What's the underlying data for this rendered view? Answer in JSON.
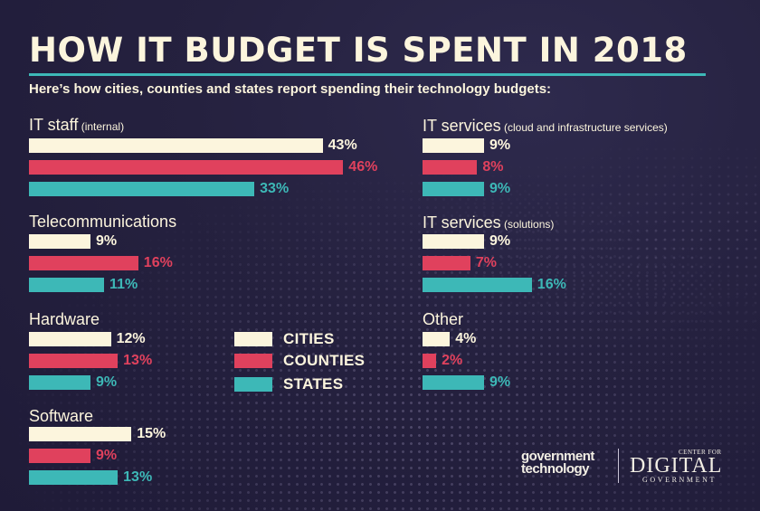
{
  "title": "HOW IT BUDGET IS SPENT IN 2018",
  "subtitle": "Here’s how cities, counties and states report spending their technology budgets:",
  "colors": {
    "cities": "#fcf5dd",
    "counties": "#e0415d",
    "states": "#3db8b7",
    "background": "#25213f",
    "text": "#fcf5dd"
  },
  "legend": [
    {
      "label": "CITIES",
      "color": "#fcf5dd"
    },
    {
      "label": "COUNTIES",
      "color": "#e0415d"
    },
    {
      "label": "STATES",
      "color": "#3db8b7"
    }
  ],
  "logos": {
    "gt_line1": "government",
    "gt_line2": "technology",
    "cdg_small": "CENTER FOR",
    "cdg_big": "DIGITAL",
    "cdg_gov": "GOVERNMENT"
  },
  "chart_data": {
    "type": "bar",
    "orientation": "horizontal",
    "title": "HOW IT BUDGET IS SPENT IN 2018",
    "unit": "%",
    "series": [
      {
        "name": "CITIES",
        "key": "cities"
      },
      {
        "name": "COUNTIES",
        "key": "counties"
      },
      {
        "name": "STATES",
        "key": "states"
      }
    ],
    "categories": [
      {
        "main": "IT staff",
        "sub": "(internal)",
        "values": {
          "cities": 43,
          "counties": 46,
          "states": 33
        }
      },
      {
        "main": "Telecommunications",
        "sub": "",
        "values": {
          "cities": 9,
          "counties": 16,
          "states": 11
        }
      },
      {
        "main": "Hardware",
        "sub": "",
        "values": {
          "cities": 12,
          "counties": 13,
          "states": 9
        }
      },
      {
        "main": "Software",
        "sub": "",
        "values": {
          "cities": 15,
          "counties": 9,
          "states": 13
        }
      },
      {
        "main": "IT services",
        "sub": "(cloud and infrastructure services)",
        "values": {
          "cities": 9,
          "counties": 8,
          "states": 9
        }
      },
      {
        "main": "IT services",
        "sub": "(solutions)",
        "values": {
          "cities": 9,
          "counties": 7,
          "states": 16
        }
      },
      {
        "main": "Other",
        "sub": "",
        "values": {
          "cities": 4,
          "counties": 2,
          "states": 9
        }
      }
    ]
  }
}
